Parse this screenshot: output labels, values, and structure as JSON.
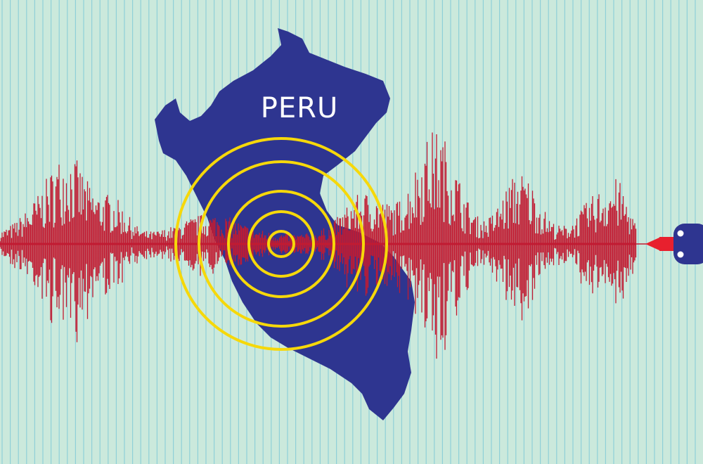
{
  "map": {
    "label": "PERU"
  },
  "colors": {
    "background": "#cbe9dc",
    "grid_line": "#8fd0d8",
    "map_fill": "#2e3590",
    "rings": "#f6d80a",
    "waveform": "#c11b32",
    "pen_tip": "#e8202e",
    "recorder": "#2e3590"
  },
  "icons": [
    "seismograph-recorder-icon",
    "epicenter-rings-icon"
  ]
}
